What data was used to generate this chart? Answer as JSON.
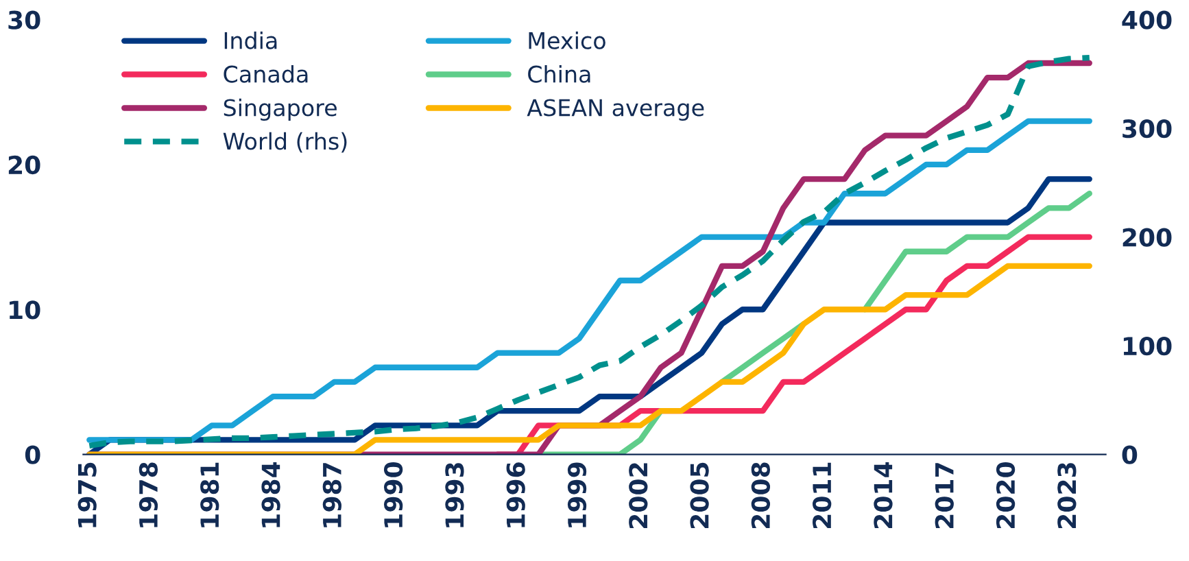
{
  "chart_data": {
    "type": "line",
    "x": [
      1975,
      1976,
      1977,
      1978,
      1979,
      1980,
      1981,
      1982,
      1983,
      1984,
      1985,
      1986,
      1987,
      1988,
      1989,
      1990,
      1991,
      1992,
      1993,
      1994,
      1995,
      1996,
      1997,
      1998,
      1999,
      2000,
      2001,
      2002,
      2003,
      2004,
      2005,
      2006,
      2007,
      2008,
      2009,
      2010,
      2011,
      2012,
      2013,
      2014,
      2015,
      2016,
      2017,
      2018,
      2019,
      2020,
      2021,
      2022,
      2023,
      2024
    ],
    "series": [
      {
        "name": "India",
        "color": "#003781",
        "line_style": "solid",
        "values": [
          0,
          1,
          1,
          1,
          1,
          1,
          1,
          1,
          1,
          1,
          1,
          1,
          1,
          1,
          2,
          2,
          2,
          2,
          2,
          2,
          3,
          3,
          3,
          3,
          3,
          4,
          4,
          4,
          5,
          6,
          7,
          9,
          10,
          10,
          12,
          14,
          16,
          16,
          16,
          16,
          16,
          16,
          16,
          16,
          16,
          16,
          17,
          19,
          19,
          19
        ]
      },
      {
        "name": "Mexico",
        "color": "#1ba3d8",
        "line_style": "solid",
        "values": [
          1,
          1,
          1,
          1,
          1,
          1,
          2,
          2,
          3,
          4,
          4,
          4,
          5,
          5,
          6,
          6,
          6,
          6,
          6,
          6,
          7,
          7,
          7,
          7,
          8,
          10,
          12,
          12,
          13,
          14,
          15,
          15,
          15,
          15,
          15,
          16,
          16,
          18,
          18,
          18,
          19,
          20,
          20,
          21,
          21,
          22,
          23,
          23,
          23,
          23
        ]
      },
      {
        "name": "Canada",
        "color": "#f32a5c",
        "line_style": "solid",
        "values": [
          null,
          null,
          null,
          null,
          null,
          null,
          null,
          null,
          null,
          null,
          null,
          null,
          null,
          null,
          null,
          null,
          null,
          null,
          null,
          null,
          0,
          0,
          2,
          2,
          2,
          2,
          2,
          3,
          3,
          3,
          3,
          3,
          3,
          3,
          5,
          5,
          6,
          7,
          8,
          9,
          10,
          10,
          12,
          13,
          13,
          14,
          15,
          15,
          15,
          15
        ]
      },
      {
        "name": "China",
        "color": "#5fcd8a",
        "line_style": "solid",
        "values": [
          null,
          null,
          null,
          null,
          null,
          null,
          null,
          null,
          null,
          null,
          null,
          null,
          null,
          null,
          null,
          null,
          null,
          null,
          null,
          null,
          null,
          null,
          0,
          0,
          0,
          0,
          0,
          1,
          3,
          null,
          null,
          5,
          6,
          7,
          8,
          9,
          null,
          null,
          10,
          12,
          14,
          14,
          14,
          15,
          15,
          15,
          16,
          17,
          17,
          18
        ]
      },
      {
        "name": "Singapore",
        "color": "#a4296a",
        "line_style": "solid",
        "values": [
          0,
          0,
          0,
          0,
          0,
          0,
          0,
          0,
          0,
          0,
          0,
          0,
          0,
          0,
          0,
          0,
          0,
          0,
          0,
          0,
          0,
          0,
          0,
          2,
          2,
          2,
          3,
          4,
          6,
          7,
          10,
          13,
          13,
          14,
          17,
          19,
          19,
          19,
          21,
          22,
          22,
          22,
          23,
          24,
          26,
          26,
          27,
          27,
          27,
          27
        ]
      },
      {
        "name": "ASEAN average",
        "color": "#fdb400",
        "line_style": "solid",
        "values": [
          0,
          0,
          0,
          0,
          0,
          0,
          0,
          0,
          0,
          0,
          0,
          0,
          0,
          0,
          1,
          1,
          1,
          1,
          1,
          1,
          1,
          1,
          1,
          2,
          2,
          2,
          2,
          2,
          3,
          3,
          4,
          5,
          5,
          6,
          7,
          9,
          10,
          10,
          10,
          10,
          11,
          11,
          11,
          11,
          12,
          13,
          13,
          13,
          13,
          13
        ]
      },
      {
        "name": "World (rhs)",
        "color": "#00908d",
        "line_style": "dashed",
        "axis": "y2",
        "values": [
          8,
          11,
          12,
          12,
          12,
          13,
          14,
          15,
          15,
          16,
          17,
          18,
          19,
          20,
          21,
          23,
          24,
          26,
          29,
          34,
          42,
          50,
          57,
          64,
          71,
          82,
          86,
          99,
          110,
          123,
          137,
          154,
          165,
          178,
          197,
          214,
          223,
          240,
          250,
          261,
          271,
          282,
          291,
          297,
          303,
          313,
          357,
          361,
          364,
          365
        ]
      }
    ],
    "xlim": [
      1974.7,
      2024.8
    ],
    "xticks": [
      1975,
      1978,
      1981,
      1984,
      1987,
      1990,
      1993,
      1996,
      1999,
      2002,
      2005,
      2008,
      2011,
      2014,
      2017,
      2020,
      2023
    ],
    "ylim": [
      0,
      30
    ],
    "yticks": [
      0,
      10,
      20,
      30
    ],
    "y2lim": [
      0,
      400
    ],
    "y2ticks": [
      0,
      100,
      200,
      300,
      400
    ],
    "legend": "top left",
    "grid": false,
    "marker": "none"
  }
}
